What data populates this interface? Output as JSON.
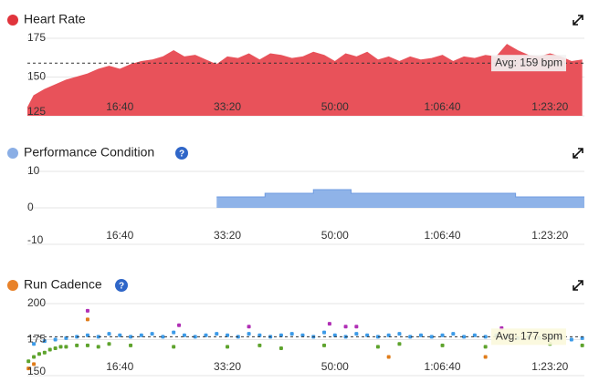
{
  "chart_data": [
    {
      "type": "area",
      "title": "Heart Rate",
      "title_color": "#e0343c",
      "color": "#e8525a",
      "x": [
        140,
        200,
        300,
        400,
        500,
        600,
        700,
        800,
        900,
        1000,
        1100,
        1200,
        1300,
        1400,
        1500,
        1600,
        1700,
        1800,
        1900,
        2000,
        2100,
        2200,
        2300,
        2400,
        2500,
        2600,
        2700,
        2800,
        2900,
        3000,
        3100,
        3200,
        3300,
        3400,
        3500,
        3600,
        3700,
        3800,
        3900,
        4000,
        4100,
        4200,
        4300,
        4400,
        4500,
        4600,
        4700,
        4800,
        4900,
        5000,
        5100,
        5200,
        5300
      ],
      "values": [
        130,
        138,
        142,
        145,
        148,
        150,
        152,
        155,
        157,
        155,
        158,
        160,
        161,
        163,
        167,
        163,
        164,
        161,
        158,
        163,
        162,
        165,
        161,
        165,
        164,
        162,
        163,
        166,
        164,
        160,
        165,
        163,
        166,
        161,
        163,
        160,
        163,
        161,
        162,
        164,
        160,
        163,
        162,
        164,
        163,
        171,
        167,
        164,
        163,
        165,
        163,
        160,
        161
      ],
      "xlim": [
        140,
        5320
      ],
      "ylim": [
        125,
        175
      ],
      "yticks": [
        175,
        150,
        125
      ],
      "xticks": [
        {
          "value": 1000,
          "label": "16:40"
        },
        {
          "value": 2000,
          "label": "33:20"
        },
        {
          "value": 3000,
          "label": "50:00"
        },
        {
          "value": 4000,
          "label": "1:06:40"
        },
        {
          "value": 5000,
          "label": "1:23:20"
        }
      ],
      "avg": 159,
      "avg_label": "Avg: 159 bpm",
      "grid": true
    },
    {
      "type": "area",
      "title": "Performance Condition",
      "title_color": "#8aaee5",
      "help_icon": "?",
      "color": "#8fb3e8",
      "x": [
        1900,
        2350,
        2350,
        2800,
        2800,
        3150,
        3150,
        4680,
        4680,
        5320
      ],
      "values": [
        3,
        3,
        4,
        4,
        5,
        5,
        4,
        4,
        3,
        3
      ],
      "xlim": [
        140,
        5320
      ],
      "ylim": [
        -10,
        10
      ],
      "yticks": [
        10,
        0,
        -10
      ],
      "xticks": [
        {
          "value": 1000,
          "label": "16:40"
        },
        {
          "value": 2000,
          "label": "33:20"
        },
        {
          "value": 3000,
          "label": "50:00"
        },
        {
          "value": 4000,
          "label": "1:06:40"
        },
        {
          "value": 5000,
          "label": "1:23:20"
        }
      ],
      "grid": true
    },
    {
      "type": "scatter",
      "title": "Run Cadence",
      "title_color": "#e8822a",
      "help_icon": "?",
      "series": [
        {
          "color": "#3d9be8",
          "x": [
            200,
            300,
            400,
            500,
            600,
            700,
            800,
            900,
            1000,
            1100,
            1200,
            1300,
            1400,
            1500,
            1600,
            1700,
            1800,
            1900,
            2000,
            2100,
            2200,
            2300,
            2400,
            2500,
            2600,
            2700,
            2800,
            2900,
            3000,
            3100,
            3200,
            3300,
            3400,
            3500,
            3600,
            3700,
            3800,
            3900,
            4000,
            4100,
            4200,
            4300,
            4400,
            4500,
            4600,
            4700,
            4800,
            4900,
            5000,
            5100,
            5200,
            5300
          ],
          "values": [
            172,
            174,
            175,
            176,
            177,
            178,
            177,
            179,
            178,
            177,
            178,
            179,
            177,
            180,
            178,
            177,
            178,
            179,
            178,
            177,
            179,
            178,
            177,
            178,
            179,
            178,
            177,
            180,
            178,
            177,
            179,
            178,
            177,
            178,
            179,
            177,
            178,
            177,
            178,
            179,
            177,
            178,
            177,
            178,
            177,
            176,
            177,
            176,
            177,
            176,
            175,
            176
          ]
        },
        {
          "color": "#5ea32d",
          "x": [
            150,
            200,
            250,
            300,
            350,
            400,
            450,
            500,
            600,
            700,
            800,
            900,
            1100,
            1500,
            2000,
            2300,
            2500,
            2900,
            3400,
            3600,
            4000,
            4400,
            5000,
            5300
          ],
          "values": [
            160,
            163,
            165,
            166,
            168,
            169,
            170,
            170,
            171,
            171,
            170,
            172,
            171,
            170,
            170,
            171,
            169,
            171,
            170,
            172,
            171,
            170,
            172,
            171
          ]
        },
        {
          "color": "#b02fb5",
          "x": [
            700,
            1550,
            2200,
            2950,
            3100,
            3200,
            4550
          ],
          "values": [
            195,
            185,
            184,
            186,
            184,
            184,
            183
          ]
        },
        {
          "color": "#e07c1a",
          "x": [
            150,
            200,
            700,
            3500,
            4400
          ],
          "values": [
            155,
            158,
            189,
            163,
            163
          ]
        }
      ],
      "xlim": [
        140,
        5320
      ],
      "ylim": [
        150,
        200
      ],
      "yticks": [
        200,
        175,
        150
      ],
      "xticks": [
        {
          "value": 1000,
          "label": "16:40"
        },
        {
          "value": 2000,
          "label": "33:20"
        },
        {
          "value": 3000,
          "label": "50:00"
        },
        {
          "value": 4000,
          "label": "1:06:40"
        },
        {
          "value": 5000,
          "label": "1:23:20"
        }
      ],
      "avg": 177,
      "avg_label": "Avg: 177 spm",
      "grid": true
    }
  ]
}
